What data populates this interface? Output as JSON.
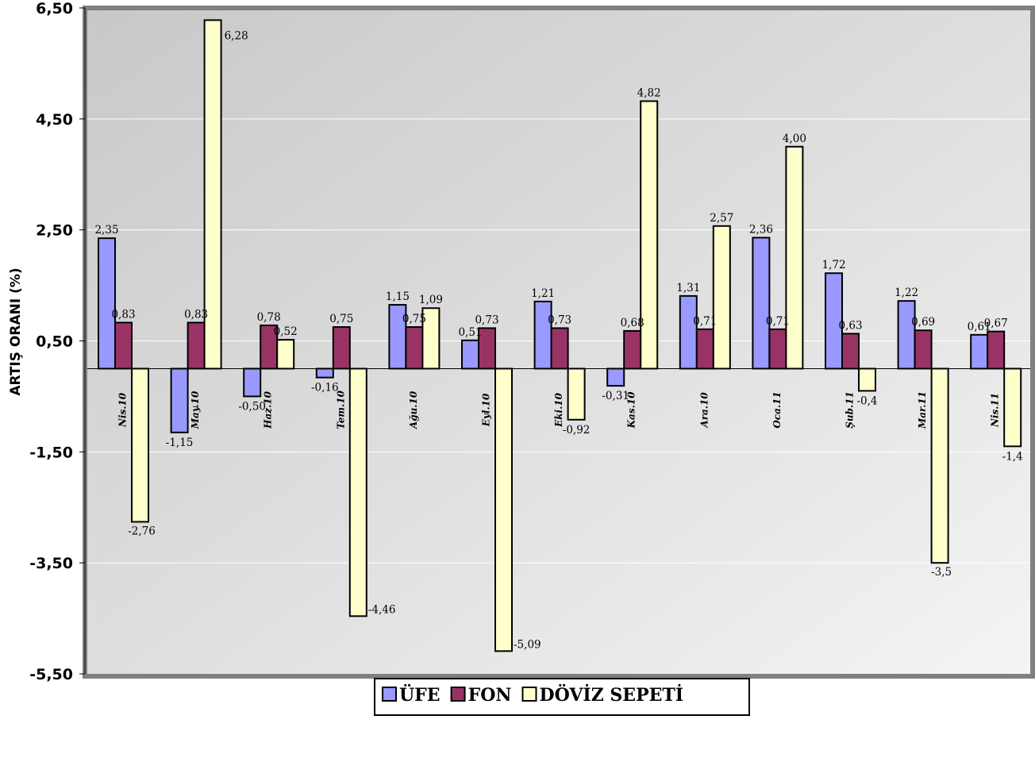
{
  "chart_data": {
    "type": "bar",
    "ylabel": "ARTIŞ ORANI (%)",
    "xlabel": "",
    "ylim": [
      -5.5,
      6.5
    ],
    "yticks": [
      "6,50",
      "4,50",
      "2,50",
      "0,50",
      "-1,50",
      "-3,50",
      "-5,50"
    ],
    "ytick_values": [
      6.5,
      4.5,
      2.5,
      0.5,
      -1.5,
      -3.5,
      -5.5
    ],
    "grid": true,
    "legend_position": "bottom",
    "categories": [
      "Nis.10",
      "May.10",
      "Haz.10",
      "Tem.10",
      "Ağu.10",
      "Eyl.10",
      "Eki.10",
      "Kas.10",
      "Ara.10",
      "Oca.11",
      "Şub.11",
      "Mar.11",
      "Nis.11"
    ],
    "series": [
      {
        "name": "ÜFE",
        "color": "#9999ff",
        "values": [
          2.35,
          -1.15,
          -0.5,
          -0.16,
          1.15,
          0.51,
          1.21,
          -0.31,
          1.31,
          2.36,
          1.72,
          1.22,
          0.61
        ],
        "labels": [
          "2,35",
          "-1,15",
          "-0,50",
          "-0,16",
          "1,15",
          "0,51",
          "1,21",
          "-0,31",
          "1,31",
          "2,36",
          "1,72",
          "1,22",
          "0,61"
        ]
      },
      {
        "name": "FON",
        "color": "#993366",
        "values": [
          0.83,
          0.83,
          0.78,
          0.75,
          0.75,
          0.73,
          0.73,
          0.68,
          0.71,
          0.71,
          0.63,
          0.69,
          0.67
        ],
        "labels": [
          "0,83",
          "0,83",
          "0,78",
          "0,75",
          "0,75",
          "0,73",
          "0,73",
          "0,68",
          "0,71",
          "0,71",
          "0,63",
          "0,69",
          "0,67"
        ]
      },
      {
        "name": "DÖVİZ SEPETİ",
        "color": "#ffffcc",
        "values": [
          -2.76,
          6.28,
          0.52,
          -4.46,
          1.09,
          -5.09,
          -0.92,
          4.82,
          2.57,
          4.0,
          -0.4,
          -3.5,
          -1.4
        ],
        "labels": [
          "-2,76",
          "6,28",
          "0,52",
          "-4,46",
          "1,09",
          "-5,09",
          "-0,92",
          "4,82",
          "2,57",
          "4,00",
          "-0,4",
          "-3,5",
          "-1,4"
        ]
      }
    ]
  }
}
